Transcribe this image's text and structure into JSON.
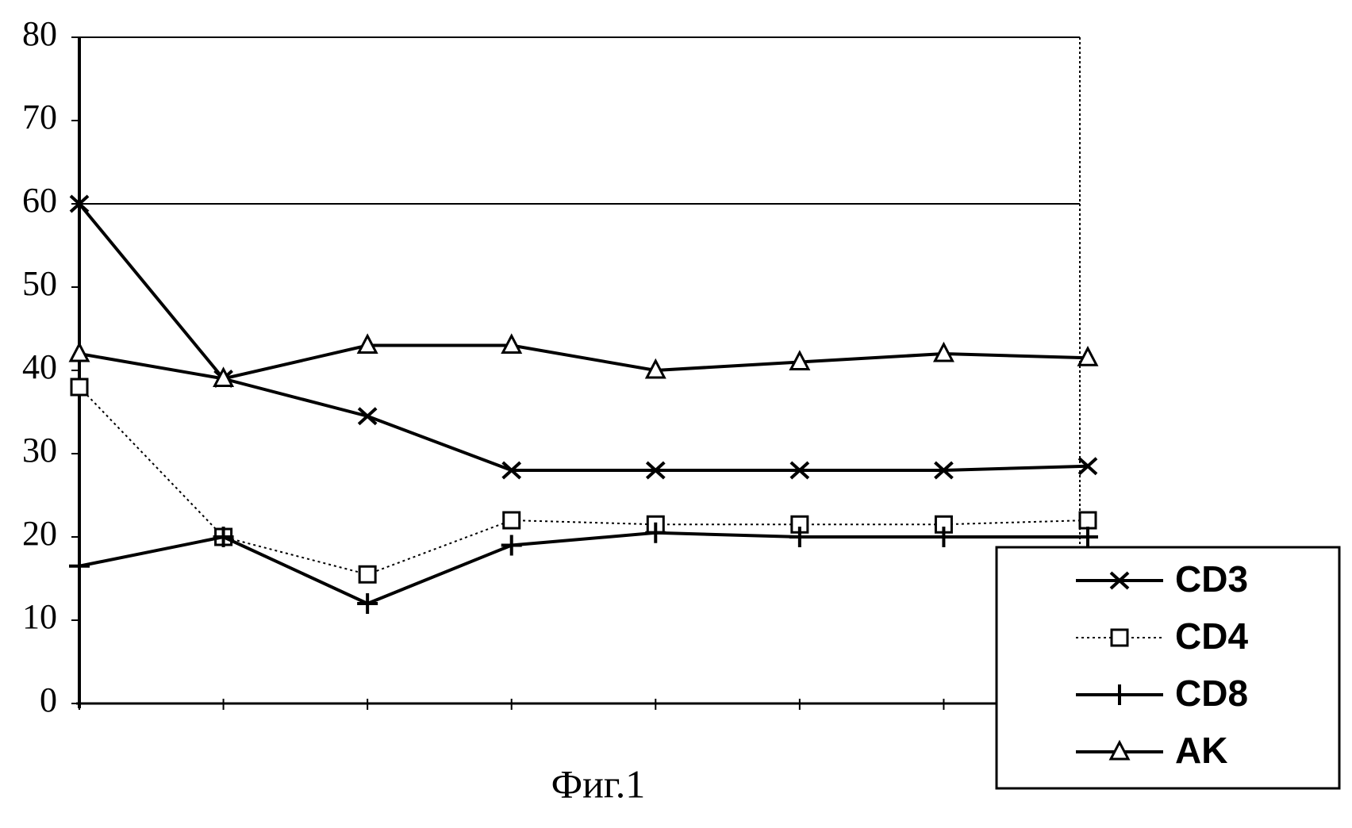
{
  "chart_data": {
    "type": "line",
    "caption": "Фиг.1",
    "categories": [
      null,
      null,
      null,
      null,
      null,
      null,
      null,
      null
    ],
    "series": [
      {
        "name": "CD3",
        "color": "#000000",
        "marker": "x",
        "style": "solid",
        "values": [
          60,
          39,
          34.5,
          28,
          28,
          28,
          28,
          28.5
        ]
      },
      {
        "name": "CD4",
        "color": "#000000",
        "marker": "square",
        "style": "dotted",
        "values": [
          38,
          20,
          15.5,
          22,
          21.5,
          21.5,
          21.5,
          22
        ]
      },
      {
        "name": "CD8",
        "color": "#000000",
        "marker": "plus",
        "style": "solid",
        "values": [
          16.5,
          20,
          12,
          19,
          20.5,
          20,
          20,
          20
        ]
      },
      {
        "name": "AK",
        "color": "#000000",
        "marker": "triangle",
        "style": "solid",
        "values": [
          42,
          39,
          43,
          43,
          40,
          41,
          42,
          41.5
        ]
      }
    ],
    "ylim": [
      0,
      80
    ],
    "yticks": [
      0,
      10,
      20,
      30,
      40,
      50,
      60,
      70,
      80
    ],
    "gridlines": [
      60,
      80
    ],
    "legend": "lower right"
  }
}
